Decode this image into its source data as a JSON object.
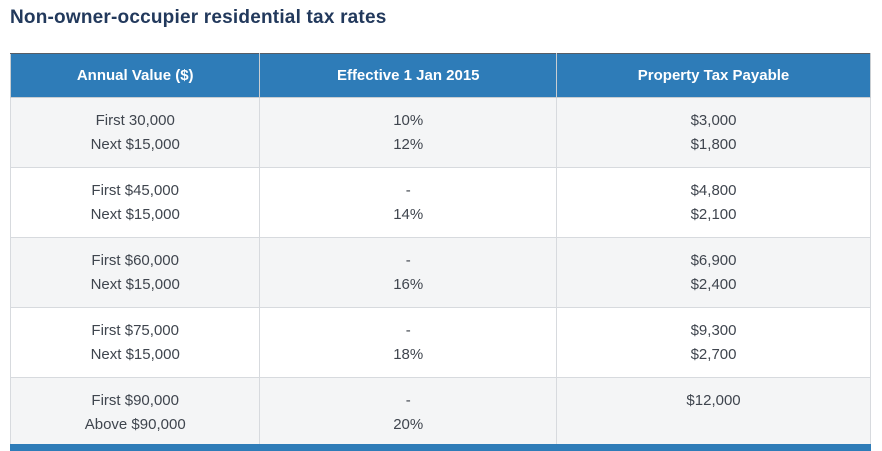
{
  "page": {
    "title": "Non-owner-occupier residential tax rates"
  },
  "table": {
    "columns": [
      "Annual Value ($)",
      "Effective 1 Jan 2015",
      "Property Tax Payable"
    ],
    "rows": [
      {
        "annual_value": [
          "First 30,000",
          "Next $15,000"
        ],
        "effective_rate": [
          "10%",
          "12%"
        ],
        "tax_payable": [
          "$3,000",
          "$1,800"
        ]
      },
      {
        "annual_value": [
          "First $45,000",
          "Next $15,000"
        ],
        "effective_rate": [
          "-",
          "14%"
        ],
        "tax_payable": [
          "$4,800",
          "$2,100"
        ]
      },
      {
        "annual_value": [
          "First $60,000",
          "Next $15,000"
        ],
        "effective_rate": [
          "-",
          "16%"
        ],
        "tax_payable": [
          "$6,900",
          "$2,400"
        ]
      },
      {
        "annual_value": [
          "First $75,000",
          "Next $15,000"
        ],
        "effective_rate": [
          "-",
          "18%"
        ],
        "tax_payable": [
          "$9,300",
          "$2,700"
        ]
      },
      {
        "annual_value": [
          "First $90,000",
          "Above $90,000"
        ],
        "effective_rate": [
          "-",
          "20%"
        ],
        "tax_payable": [
          "$12,000",
          ""
        ]
      }
    ]
  },
  "colors": {
    "header_background": "#2E7CB8",
    "header_text": "#FFFFFF",
    "title_text": "#22395C",
    "row_band_gray": "#F4F5F6",
    "row_band_white": "#FFFFFF",
    "body_text": "#3F454E",
    "bottom_accent_bar": "#2E7CB8",
    "border": "#D7DADE"
  }
}
